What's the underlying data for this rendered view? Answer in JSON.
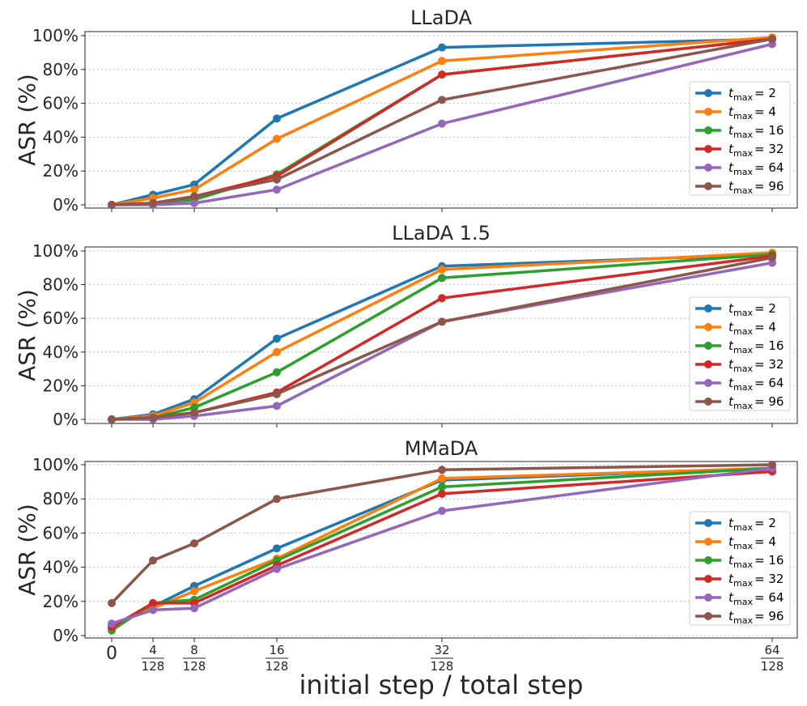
{
  "chart_data": [
    {
      "type": "line",
      "title": "LLaDA",
      "ylabel": "ASR (%)",
      "xlabel": "",
      "x": [
        0,
        4,
        8,
        16,
        32,
        64
      ],
      "ylim": [
        0,
        100
      ],
      "yticks": [
        "0%",
        "20%",
        "40%",
        "60%",
        "80%",
        "100%"
      ],
      "legend_position": "center-right",
      "series": [
        {
          "name": "t_max = 2",
          "legend_var": "t",
          "legend_sub": "max",
          "legend_value": "= 2",
          "color": "#1f77b4",
          "values": [
            0,
            6,
            12,
            51,
            93,
            98
          ]
        },
        {
          "name": "t_max = 4",
          "legend_var": "t",
          "legend_sub": "max",
          "legend_value": "= 4",
          "color": "#ff7f0e",
          "values": [
            0,
            4,
            9,
            39,
            85,
            99
          ]
        },
        {
          "name": "t_max = 16",
          "legend_var": "t",
          "legend_sub": "max",
          "legend_value": "= 16",
          "color": "#2ca02c",
          "values": [
            0,
            1,
            3,
            18,
            77,
            98
          ]
        },
        {
          "name": "t_max = 32",
          "legend_var": "t",
          "legend_sub": "max",
          "legend_value": "= 32",
          "color": "#d62728",
          "values": [
            0,
            1,
            5,
            17,
            77,
            98
          ]
        },
        {
          "name": "t_max = 64",
          "legend_var": "t",
          "legend_sub": "max",
          "legend_value": "= 64",
          "color": "#9467bd",
          "values": [
            0,
            0,
            1,
            9,
            48,
            95
          ]
        },
        {
          "name": "t_max = 96",
          "legend_var": "t",
          "legend_sub": "max",
          "legend_value": "= 96",
          "color": "#8c564b",
          "values": [
            0,
            1,
            5,
            15,
            62,
            98
          ]
        }
      ]
    },
    {
      "type": "line",
      "title": "LLaDA 1.5",
      "ylabel": "ASR (%)",
      "xlabel": "",
      "x": [
        0,
        4,
        8,
        16,
        32,
        64
      ],
      "ylim": [
        0,
        100
      ],
      "yticks": [
        "0%",
        "20%",
        "40%",
        "60%",
        "80%",
        "100%"
      ],
      "legend_position": "center-right",
      "series": [
        {
          "name": "t_max = 2",
          "legend_var": "t",
          "legend_sub": "max",
          "legend_value": "= 2",
          "color": "#1f77b4",
          "values": [
            0,
            3,
            12,
            48,
            91,
            98
          ]
        },
        {
          "name": "t_max = 4",
          "legend_var": "t",
          "legend_sub": "max",
          "legend_value": "= 4",
          "color": "#ff7f0e",
          "values": [
            0,
            2,
            10,
            40,
            89,
            99
          ]
        },
        {
          "name": "t_max = 16",
          "legend_var": "t",
          "legend_sub": "max",
          "legend_value": "= 16",
          "color": "#2ca02c",
          "values": [
            0,
            1,
            7,
            28,
            84,
            98
          ]
        },
        {
          "name": "t_max = 32",
          "legend_var": "t",
          "legend_sub": "max",
          "legend_value": "= 32",
          "color": "#d62728",
          "values": [
            0,
            1,
            4,
            16,
            72,
            97
          ]
        },
        {
          "name": "t_max = 64",
          "legend_var": "t",
          "legend_sub": "max",
          "legend_value": "= 64",
          "color": "#9467bd",
          "values": [
            0,
            0,
            2,
            8,
            58,
            93
          ]
        },
        {
          "name": "t_max = 96",
          "legend_var": "t",
          "legend_sub": "max",
          "legend_value": "= 96",
          "color": "#8c564b",
          "values": [
            0,
            1,
            4,
            15,
            58,
            96
          ]
        }
      ]
    },
    {
      "type": "line",
      "title": "MMaDA",
      "ylabel": "ASR (%)",
      "xlabel": "initial step / total step",
      "x": [
        0,
        4,
        8,
        16,
        32,
        64
      ],
      "ylim": [
        0,
        100
      ],
      "yticks": [
        "0%",
        "20%",
        "40%",
        "60%",
        "80%",
        "100%"
      ],
      "xticks": [
        {
          "num": "0",
          "den": ""
        },
        {
          "num": "4",
          "den": "128"
        },
        {
          "num": "8",
          "den": "128"
        },
        {
          "num": "16",
          "den": "128"
        },
        {
          "num": "32",
          "den": "128"
        },
        {
          "num": "64",
          "den": "128"
        }
      ],
      "legend_position": "center-right",
      "series": [
        {
          "name": "t_max = 2",
          "legend_var": "t",
          "legend_sub": "max",
          "legend_value": "= 2",
          "color": "#1f77b4",
          "values": [
            5,
            17,
            29,
            51,
            91,
            98
          ]
        },
        {
          "name": "t_max = 4",
          "legend_var": "t",
          "legend_sub": "max",
          "legend_value": "= 4",
          "color": "#ff7f0e",
          "values": [
            6,
            16,
            26,
            45,
            92,
            98
          ]
        },
        {
          "name": "t_max = 16",
          "legend_var": "t",
          "legend_sub": "max",
          "legend_value": "= 16",
          "color": "#2ca02c",
          "values": [
            3,
            19,
            21,
            44,
            87,
            98
          ]
        },
        {
          "name": "t_max = 32",
          "legend_var": "t",
          "legend_sub": "max",
          "legend_value": "= 32",
          "color": "#d62728",
          "values": [
            5,
            19,
            19,
            41,
            83,
            96
          ]
        },
        {
          "name": "t_max = 64",
          "legend_var": "t",
          "legend_sub": "max",
          "legend_value": "= 64",
          "color": "#9467bd",
          "values": [
            7,
            15,
            16,
            39,
            73,
            98
          ]
        },
        {
          "name": "t_max = 96",
          "legend_var": "t",
          "legend_sub": "max",
          "legend_value": "= 96",
          "color": "#8c564b",
          "values": [
            19,
            44,
            54,
            80,
            97,
            100
          ]
        }
      ]
    }
  ]
}
